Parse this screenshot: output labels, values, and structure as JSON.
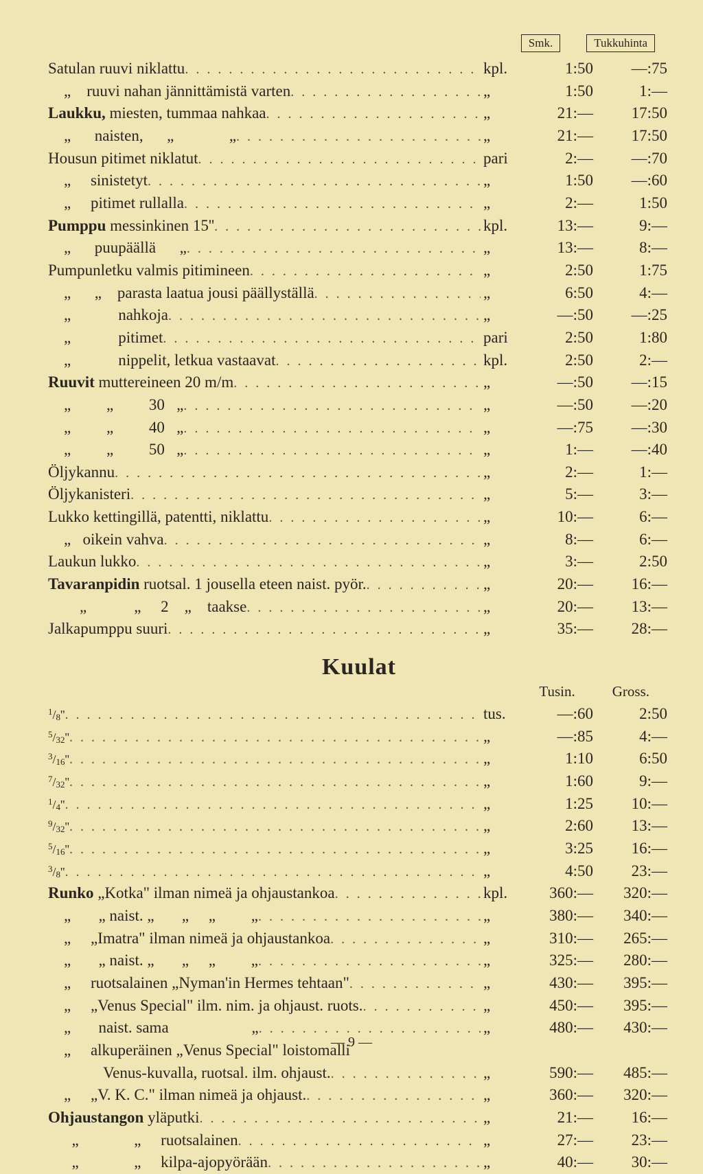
{
  "header": {
    "c1": "Smk.",
    "c2": "Tukkuhinta"
  },
  "rows1": [
    {
      "d": "Satulan ruuvi niklattu",
      "u": "kpl.",
      "p1": "1:50",
      "p2": "—:75"
    },
    {
      "d": "    „    ruuvi nahan jännittämistä varten",
      "u": "„",
      "p1": "1:50",
      "p2": "1:—"
    },
    {
      "d": "<b>Laukku,</b> miesten, tummaa nahkaa",
      "u": "„",
      "p1": "21:—",
      "p2": "17:50"
    },
    {
      "d": "    „      naisten,      „              „",
      "u": "„",
      "p1": "21:—",
      "p2": "17:50"
    },
    {
      "d": "Housun pitimet niklatut",
      "u": "pari",
      "p1": "2:—",
      "p2": "—:70"
    },
    {
      "d": "    „     sinistetyt",
      "u": "„",
      "p1": "1:50",
      "p2": "—:60"
    },
    {
      "d": "    „     pitimet rullalla",
      "u": "„",
      "p1": "2:—",
      "p2": "1:50"
    },
    {
      "d": "<b>Pumppu</b> messinkinen 15''",
      "u": "kpl.",
      "p1": "13:—",
      "p2": "9:—"
    },
    {
      "d": "    „      puupäällä      „",
      "u": "„",
      "p1": "13:—",
      "p2": "8:—"
    },
    {
      "d": "Pumpunletku valmis pitimineen",
      "u": "„",
      "p1": "2:50",
      "p2": "1:75"
    },
    {
      "d": "    „      „    parasta laatua jousi päällyställä",
      "u": "„",
      "p1": "6:50",
      "p2": "4:—"
    },
    {
      "d": "    „            nahkoja",
      "u": "„",
      "p1": "—:50",
      "p2": "—:25"
    },
    {
      "d": "    „            pitimet",
      "u": "pari",
      "p1": "2:50",
      "p2": "1:80"
    },
    {
      "d": "    „            nippelit, letkua vastaavat",
      "u": "kpl.",
      "p1": "2:50",
      "p2": "2:—"
    },
    {
      "d": "<b>Ruuvit</b> muttereineen 20 m/m",
      "u": "„",
      "p1": "—:50",
      "p2": "—:15"
    },
    {
      "d": "    „         „         30   „",
      "u": "„",
      "p1": "—:50",
      "p2": "—:20"
    },
    {
      "d": "    „         „         40   „",
      "u": "„",
      "p1": "—:75",
      "p2": "—:30"
    },
    {
      "d": "    „         „         50   „",
      "u": "„",
      "p1": "1:—",
      "p2": "—:40"
    },
    {
      "d": "Öljykannu",
      "u": "„",
      "p1": "2:—",
      "p2": "1:—"
    },
    {
      "d": "Öljykanisteri",
      "u": "„",
      "p1": "5:—",
      "p2": "3:—"
    },
    {
      "d": "Lukko kettingillä, patentti, niklattu",
      "u": "„",
      "p1": "10:—",
      "p2": "6:—"
    },
    {
      "d": "    „   oikein vahva",
      "u": "„",
      "p1": "8:—",
      "p2": "6:—"
    },
    {
      "d": "Laukun lukko",
      "u": "„",
      "p1": "3:—",
      "p2": "2:50"
    },
    {
      "d": "<b>Tavaranpidin</b> ruotsal. 1 jousella eteen naist. pyör.",
      "u": "„",
      "p1": "20:—",
      "p2": "16:—"
    },
    {
      "d": "        „            „     2    „    taakse",
      "u": "„",
      "p1": "20:—",
      "p2": "13:—"
    },
    {
      "d": "Jalkapumppu suuri",
      "u": "„",
      "p1": "35:—",
      "p2": "28:—"
    }
  ],
  "title2": "Kuulat",
  "sub": {
    "c1": "Tusin.",
    "c2": "Gross."
  },
  "rows2": [
    {
      "d": "<span class='frac'><sup>1</sup>/<sub>8</sub>''</span>",
      "u": "tus.",
      "p1": "—:60",
      "p2": "2:50"
    },
    {
      "d": "<span class='frac'><sup>5</sup>/<sub>32</sub>''</span>",
      "u": "„",
      "p1": "—:85",
      "p2": "4:—"
    },
    {
      "d": "<span class='frac'><sup>3</sup>/<sub>16</sub>''</span>",
      "u": "„",
      "p1": "1:10",
      "p2": "6:50"
    },
    {
      "d": "<span class='frac'><sup>7</sup>/<sub>32</sub>''</span>",
      "u": "„",
      "p1": "1:60",
      "p2": "9:—"
    },
    {
      "d": "<span class='frac'><sup>1</sup>/<sub>4</sub>''</span>",
      "u": "„",
      "p1": "1:25",
      "p2": "10:—"
    },
    {
      "d": "<span class='frac'><sup>9</sup>/<sub>32</sub>''</span>",
      "u": "„",
      "p1": "2:60",
      "p2": "13:—"
    },
    {
      "d": "<span class='frac'><sup>5</sup>/<sub>16</sub>''</span>",
      "u": "„",
      "p1": "3:25",
      "p2": "16:—"
    },
    {
      "d": "<span class='frac'><sup>3</sup>/<sub>8</sub>''</span>",
      "u": "„",
      "p1": "4:50",
      "p2": "23:—"
    },
    {
      "d": "<b>Runko</b> „Kotka\" ilman nimeä ja ohjaustankoa",
      "u": "kpl.",
      "p1": "360:—",
      "p2": "320:—"
    },
    {
      "d": "    „       „ naist. „       „     „         „",
      "u": "„",
      "p1": "380:—",
      "p2": "340:—"
    },
    {
      "d": "    „     „Imatra\" ilman nimeä ja ohjaustankoa",
      "u": "„",
      "p1": "310:—",
      "p2": "265:—"
    },
    {
      "d": "    „       „ naist. „       „     „         „",
      "u": "„",
      "p1": "325:—",
      "p2": "280:—"
    },
    {
      "d": "    „     ruotsalainen „Nyman'in Hermes tehtaan\"",
      "u": "„",
      "p1": "430:—",
      "p2": "395:—"
    },
    {
      "d": "    „     „Venus Special\" ilm. nim. ja ohjaust. ruots.",
      "u": "„",
      "p1": "450:—",
      "p2": "395:—"
    },
    {
      "d": "    „       naist. sama                     „",
      "u": "„",
      "p1": "480:—",
      "p2": "430:—"
    },
    {
      "d": "    „     alkuperäinen „Venus Special\" loistomalli",
      "u": "",
      "p1": "",
      "p2": ""
    },
    {
      "d": "              Venus-kuvalla, ruotsal. ilm. ohjaust.",
      "u": "„",
      "p1": "590:—",
      "p2": "485:—"
    },
    {
      "d": "    „     „V. K. C.\" ilman nimeä ja ohjaust.",
      "u": "„",
      "p1": "360:—",
      "p2": "320:—"
    },
    {
      "d": "<b>Ohjaustangon</b> yläputki",
      "u": "„",
      "p1": "21:—",
      "p2": "16:—"
    },
    {
      "d": "      „              „     ruotsalainen",
      "u": "„",
      "p1": "27:—",
      "p2": "23:—"
    },
    {
      "d": "      „              „     kilpa-ajopyörään",
      "u": "„",
      "p1": "40:—",
      "p2": "30:—"
    }
  ],
  "pagenum": "— 9 —"
}
